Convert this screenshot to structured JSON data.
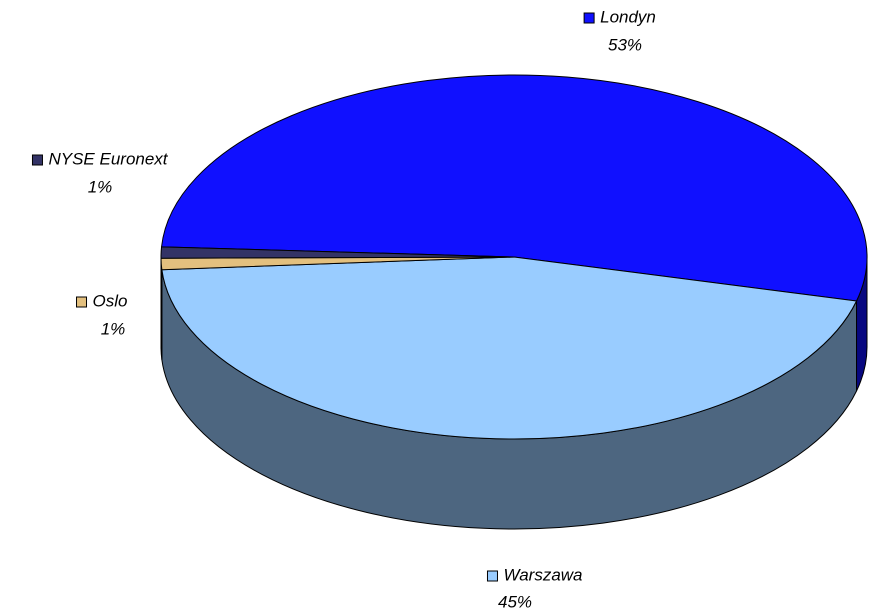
{
  "chart_data": {
    "type": "pie3d",
    "categories": [
      "Londyn",
      "Warszawa",
      "Oslo",
      "NYSE Euronext"
    ],
    "values": [
      53,
      45,
      1,
      1
    ],
    "value_labels": [
      "53%",
      "45%",
      "1%",
      "1%"
    ],
    "colors": [
      "#1010ff",
      "#99ccff",
      "#e3c07f",
      "#333366"
    ]
  }
}
